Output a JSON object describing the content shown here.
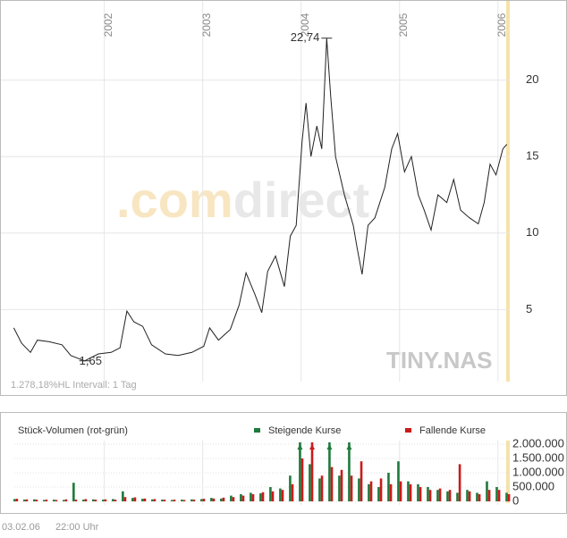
{
  "chart_data": [
    {
      "type": "line",
      "color": "#222222",
      "x": [
        2001.08,
        2001.16,
        2001.25,
        2001.32,
        2001.44,
        2001.57,
        2001.66,
        2001.8,
        2001.94,
        2002.07,
        2002.16,
        2002.23,
        2002.3,
        2002.39,
        2002.48,
        2002.62,
        2002.75,
        2002.89,
        2003.01,
        2003.07,
        2003.16,
        2003.28,
        2003.37,
        2003.44,
        2003.53,
        2003.6,
        2003.66,
        2003.74,
        2003.83,
        2003.89,
        2003.95,
        2004.01,
        2004.05,
        2004.1,
        2004.16,
        2004.21,
        2004.26,
        2004.3,
        2004.35,
        2004.44,
        2004.53,
        2004.57,
        2004.62,
        2004.68,
        2004.75,
        2004.85,
        2004.92,
        2004.98,
        2005.05,
        2005.12,
        2005.19,
        2005.25,
        2005.32,
        2005.39,
        2005.48,
        2005.55,
        2005.62,
        2005.71,
        2005.8,
        2005.86,
        2005.92,
        2005.98,
        2006.05,
        2006.09
      ],
      "values": [
        3.8,
        2.8,
        2.2,
        3.0,
        2.9,
        2.7,
        2.0,
        1.65,
        2.1,
        2.2,
        2.5,
        4.9,
        4.2,
        3.9,
        2.7,
        2.1,
        2.0,
        2.2,
        2.6,
        3.8,
        3.0,
        3.7,
        5.3,
        7.4,
        6.0,
        4.8,
        7.5,
        8.5,
        6.5,
        9.8,
        10.5,
        16,
        18.5,
        15,
        17,
        15.5,
        22.74,
        19,
        15,
        12.5,
        10.5,
        9,
        7.3,
        10.5,
        11,
        13,
        15.5,
        16.5,
        14,
        15,
        12.5,
        11.5,
        10.2,
        12.5,
        12,
        13.5,
        11.5,
        11,
        10.6,
        12,
        14.5,
        13.8,
        15.5,
        15.8
      ],
      "xlim": [
        2000.94,
        2006.12
      ],
      "xticks": [
        2002,
        2003,
        2004,
        2005,
        2006
      ],
      "ylim": [
        0,
        25
      ],
      "yticks": [
        5,
        10,
        15,
        20
      ],
      "grid": true,
      "annotations": [
        {
          "text": "22,74",
          "x": 2004.26,
          "y": 22.74
        },
        {
          "text": "1,65",
          "x": 2001.8,
          "y": 1.65
        }
      ],
      "note": "1.278,18%HL  Intervall: 1 Tag",
      "watermark": [
        ".com",
        "direct"
      ],
      "watermark2": "TINY.NAS"
    },
    {
      "type": "bar",
      "title": "Stück-Volumen (rot-grün)",
      "x": [
        2001.1,
        2001.2,
        2001.3,
        2001.4,
        2001.5,
        2001.6,
        2001.7,
        2001.8,
        2001.9,
        2002.0,
        2002.1,
        2002.2,
        2002.3,
        2002.4,
        2002.5,
        2002.6,
        2002.7,
        2002.8,
        2002.9,
        2003.0,
        2003.1,
        2003.2,
        2003.3,
        2003.4,
        2003.5,
        2003.6,
        2003.7,
        2003.8,
        2003.9,
        2004.0,
        2004.1,
        2004.2,
        2004.3,
        2004.4,
        2004.5,
        2004.6,
        2004.7,
        2004.8,
        2004.9,
        2005.0,
        2005.1,
        2005.2,
        2005.3,
        2005.4,
        2005.5,
        2005.6,
        2005.7,
        2005.8,
        2005.9,
        2006.0,
        2006.1
      ],
      "series": [
        {
          "name": "Steigende Kurse",
          "color": "#1e7a3c",
          "values": [
            80000,
            60000,
            70000,
            50000,
            60000,
            50000,
            650000,
            60000,
            70000,
            60000,
            80000,
            350000,
            120000,
            90000,
            70000,
            60000,
            50000,
            60000,
            70000,
            80000,
            120000,
            100000,
            200000,
            250000,
            300000,
            280000,
            500000,
            450000,
            900000,
            2100000,
            1300000,
            800000,
            2100000,
            900000,
            2100000,
            800000,
            600000,
            500000,
            1000000,
            1400000,
            700000,
            600000,
            500000,
            400000,
            350000,
            300000,
            400000,
            300000,
            700000,
            500000,
            300000
          ]
        },
        {
          "name": "Fallende Kurse",
          "color": "#cc1a1a",
          "values": [
            90000,
            70000,
            60000,
            60000,
            50000,
            70000,
            60000,
            80000,
            60000,
            70000,
            60000,
            150000,
            140000,
            100000,
            80000,
            60000,
            60000,
            50000,
            60000,
            90000,
            100000,
            130000,
            150000,
            200000,
            250000,
            320000,
            350000,
            400000,
            600000,
            1500000,
            2100000,
            900000,
            1200000,
            1100000,
            900000,
            1400000,
            700000,
            800000,
            600000,
            700000,
            600000,
            500000,
            400000,
            450000,
            400000,
            1300000,
            350000,
            250000,
            400000,
            400000,
            250000
          ]
        }
      ],
      "ylim": [
        0,
        2000000
      ],
      "yticks": [
        0,
        {
          "value": 500000,
          "label": "500.000"
        },
        {
          "value": 1000000,
          "label": "1.000.000"
        },
        {
          "value": 1500000,
          "label": "1.500.000"
        },
        {
          "value": 2000000,
          "label": "2.000.000"
        }
      ],
      "grid": true
    }
  ],
  "footer": {
    "date": "03.02.06",
    "time": "22:00 Uhr"
  }
}
